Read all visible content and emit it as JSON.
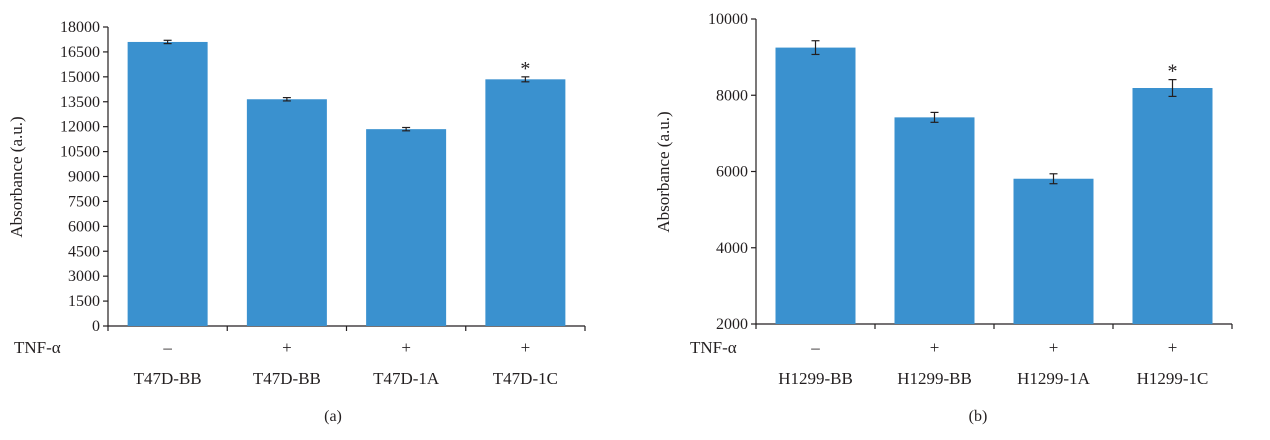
{
  "chart_data": [
    {
      "type": "bar",
      "panel_label": "(a)",
      "ylabel": "Absorbance (a.u.)",
      "ylim": [
        0,
        18000
      ],
      "yticks": [
        0,
        1500,
        3000,
        4500,
        6000,
        7500,
        9000,
        10500,
        12000,
        13500,
        15000,
        16500,
        18000
      ],
      "row_label": "TNF-α",
      "tnf": [
        "–",
        "+",
        "+",
        "+"
      ],
      "categories": [
        "T47D-BB",
        "T47D-BB",
        "T47D-1A",
        "T47D-1C"
      ],
      "values": [
        17100,
        13650,
        11850,
        14850
      ],
      "errors": [
        100,
        100,
        100,
        150
      ],
      "annotations": [
        "",
        "",
        "",
        "*"
      ],
      "bar_color": "#3a91cf",
      "grid": false
    },
    {
      "type": "bar",
      "panel_label": "(b)",
      "ylabel": "Absorbance (a.u.)",
      "ylim": [
        2000,
        10000
      ],
      "yticks": [
        2000,
        4000,
        6000,
        8000,
        10000
      ],
      "row_label": "TNF-α",
      "tnf": [
        "–",
        "+",
        "+",
        "+"
      ],
      "categories": [
        "H1299-BB",
        "H1299-BB",
        "H1299-1A",
        "H1299-1C"
      ],
      "values": [
        9250,
        7420,
        5810,
        8190
      ],
      "errors": [
        180,
        130,
        130,
        220
      ],
      "annotations": [
        "",
        "",
        "",
        "*"
      ],
      "bar_color": "#3a91cf",
      "grid": false
    }
  ]
}
